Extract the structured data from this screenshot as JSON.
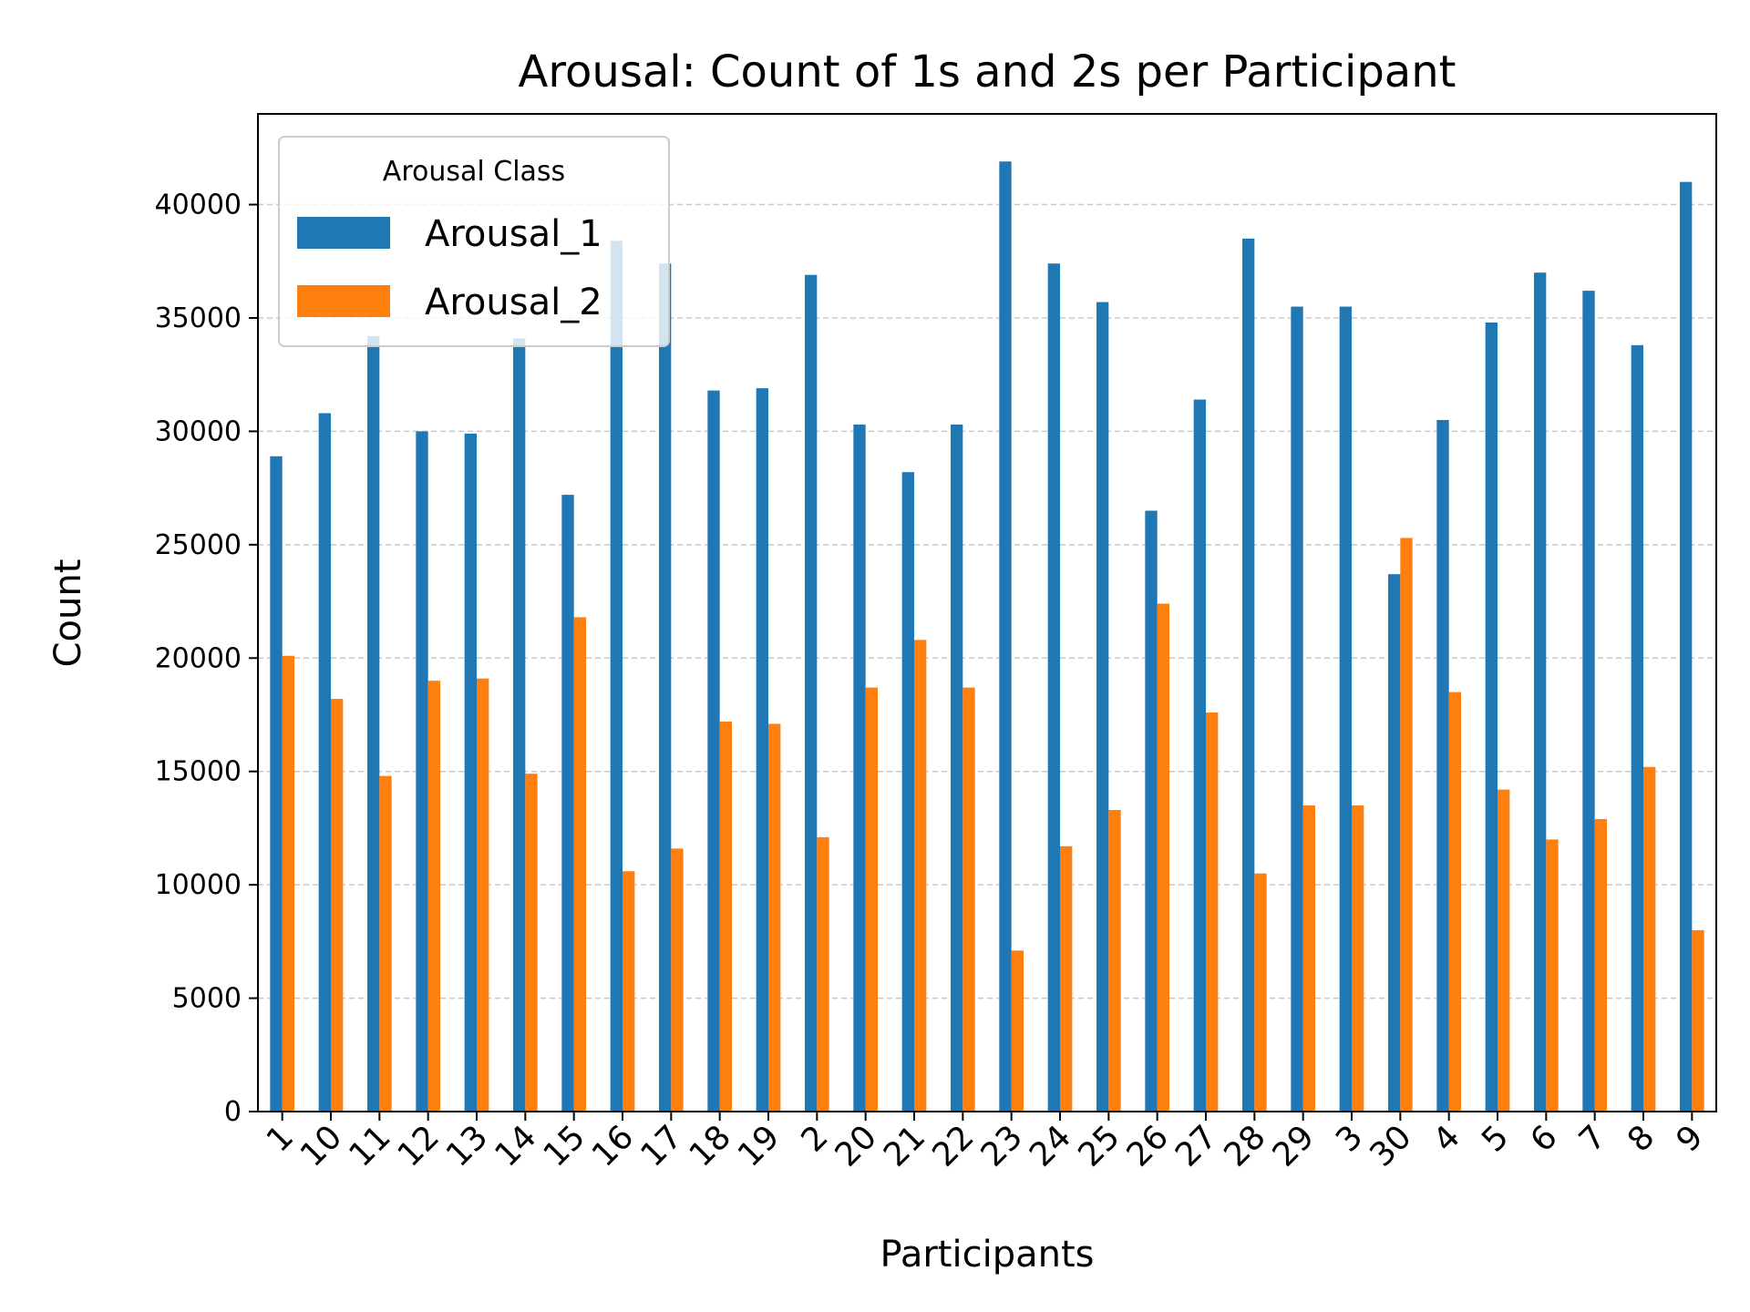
{
  "chart_data": {
    "type": "bar",
    "title": "Arousal: Count of 1s and 2s per Participant",
    "xlabel": "Participants",
    "ylabel": "Count",
    "ylim": [
      0,
      44000
    ],
    "yticks": [
      0,
      5000,
      10000,
      15000,
      20000,
      25000,
      30000,
      35000,
      40000
    ],
    "grid": "y-dashed",
    "legend": {
      "title": "Arousal Class",
      "placement": "top-left"
    },
    "categories": [
      "1",
      "10",
      "11",
      "12",
      "13",
      "14",
      "15",
      "16",
      "17",
      "18",
      "19",
      "2",
      "20",
      "21",
      "22",
      "23",
      "24",
      "25",
      "26",
      "27",
      "28",
      "29",
      "3",
      "30",
      "4",
      "5",
      "6",
      "7",
      "8",
      "9"
    ],
    "series": [
      {
        "name": "Arousal_1",
        "color": "#1f77b4",
        "values": [
          28900,
          30800,
          34200,
          30000,
          29900,
          34100,
          27200,
          38400,
          37400,
          31800,
          31900,
          36900,
          30300,
          28200,
          30300,
          41900,
          37400,
          35700,
          26500,
          31400,
          38500,
          35500,
          35500,
          23700,
          30500,
          34800,
          37000,
          36200,
          33800,
          41000
        ]
      },
      {
        "name": "Arousal_2",
        "color": "#ff7f0e",
        "values": [
          20100,
          18200,
          14800,
          19000,
          19100,
          14900,
          21800,
          10600,
          11600,
          17200,
          17100,
          12100,
          18700,
          20800,
          18700,
          7100,
          11700,
          13300,
          22400,
          17600,
          10500,
          13500,
          13500,
          25300,
          18500,
          14200,
          12000,
          12900,
          15200,
          8000
        ]
      }
    ]
  }
}
